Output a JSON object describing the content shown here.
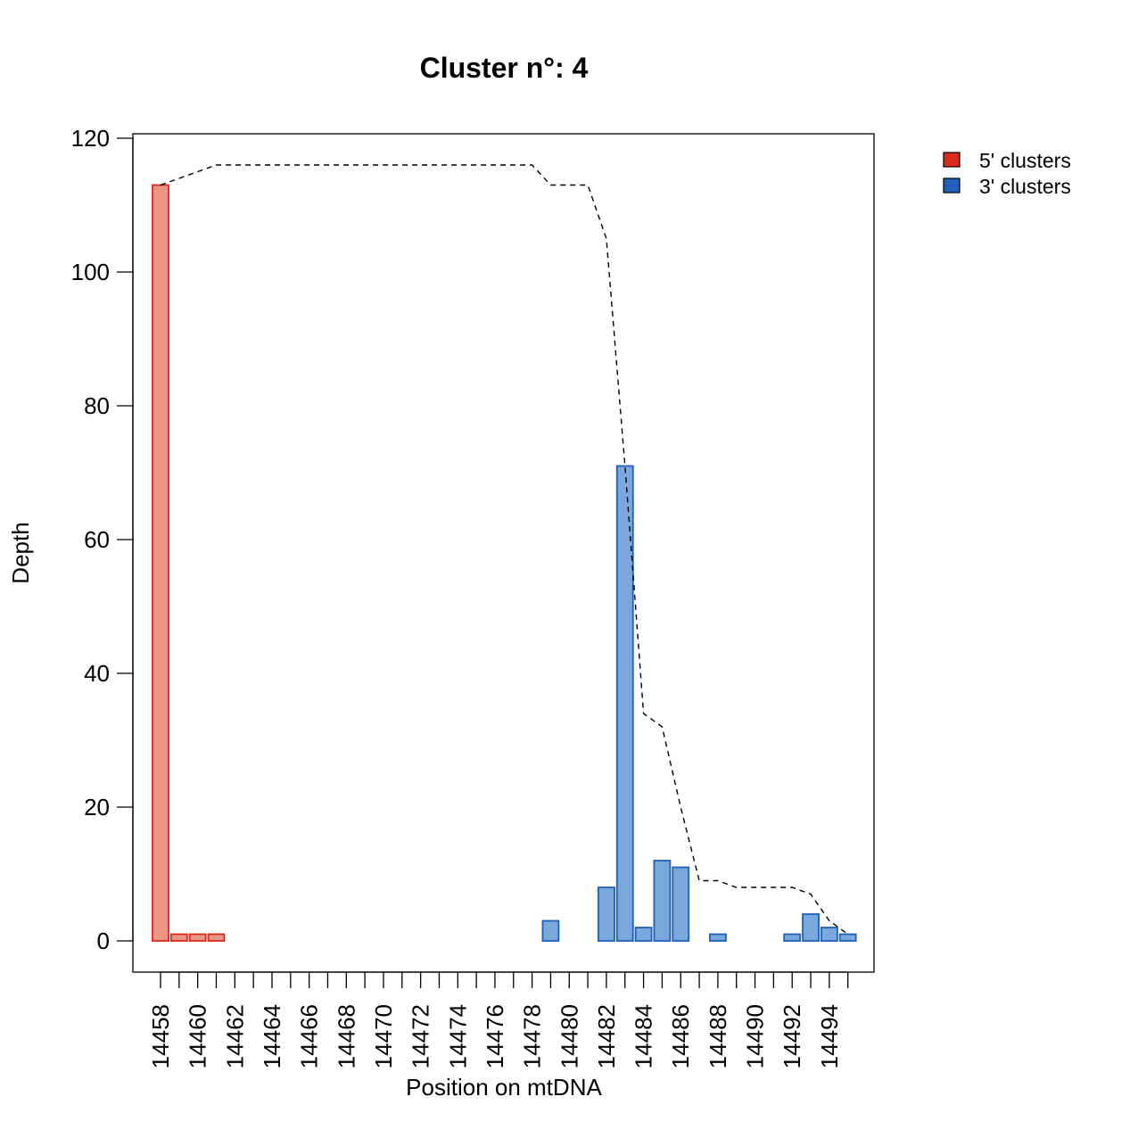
{
  "chart_data": {
    "type": "bar",
    "title": "Cluster n°: 4",
    "xlabel": "Position on mtDNA",
    "ylabel": "Depth",
    "ylim": [
      0,
      120
    ],
    "yticks": [
      0,
      20,
      40,
      60,
      80,
      100,
      120
    ],
    "x_range": [
      14458,
      14495
    ],
    "x_tick_labels": [
      "14458",
      "14460",
      "14462",
      "14464",
      "14466",
      "14468",
      "14470",
      "14472",
      "14474",
      "14476",
      "14478",
      "14480",
      "14482",
      "14484",
      "14486",
      "14488",
      "14490",
      "14492",
      "14494"
    ],
    "grid": false,
    "legend_position": "top-right (outside plot)",
    "series": [
      {
        "name": "5' clusters",
        "color": "#d92a1e",
        "fill": "#eb9488",
        "points": [
          {
            "x": 14458,
            "y": 113
          },
          {
            "x": 14459,
            "y": 1
          },
          {
            "x": 14460,
            "y": 1
          },
          {
            "x": 14461,
            "y": 1
          }
        ]
      },
      {
        "name": "3' clusters",
        "color": "#1f5fb8",
        "fill": "#7aa8dc",
        "points": [
          {
            "x": 14479,
            "y": 3
          },
          {
            "x": 14482,
            "y": 8
          },
          {
            "x": 14483,
            "y": 71
          },
          {
            "x": 14484,
            "y": 2
          },
          {
            "x": 14485,
            "y": 12
          },
          {
            "x": 14486,
            "y": 11
          },
          {
            "x": 14488,
            "y": 1
          },
          {
            "x": 14492,
            "y": 1
          },
          {
            "x": 14493,
            "y": 4
          },
          {
            "x": 14494,
            "y": 2
          },
          {
            "x": 14495,
            "y": 1
          }
        ]
      }
    ],
    "coverage_line": {
      "style": "dashed",
      "color": "#000000",
      "points": [
        {
          "x": 14458,
          "y": 113
        },
        {
          "x": 14461,
          "y": 116
        },
        {
          "x": 14470,
          "y": 116
        },
        {
          "x": 14478,
          "y": 116
        },
        {
          "x": 14479,
          "y": 113
        },
        {
          "x": 14481,
          "y": 113
        },
        {
          "x": 14482,
          "y": 105
        },
        {
          "x": 14483,
          "y": 71
        },
        {
          "x": 14484,
          "y": 34
        },
        {
          "x": 14485,
          "y": 32
        },
        {
          "x": 14486,
          "y": 20
        },
        {
          "x": 14487,
          "y": 9
        },
        {
          "x": 14488,
          "y": 9
        },
        {
          "x": 14489,
          "y": 8
        },
        {
          "x": 14492,
          "y": 8
        },
        {
          "x": 14493,
          "y": 7
        },
        {
          "x": 14494,
          "y": 3
        },
        {
          "x": 14495,
          "y": 1
        }
      ]
    }
  }
}
